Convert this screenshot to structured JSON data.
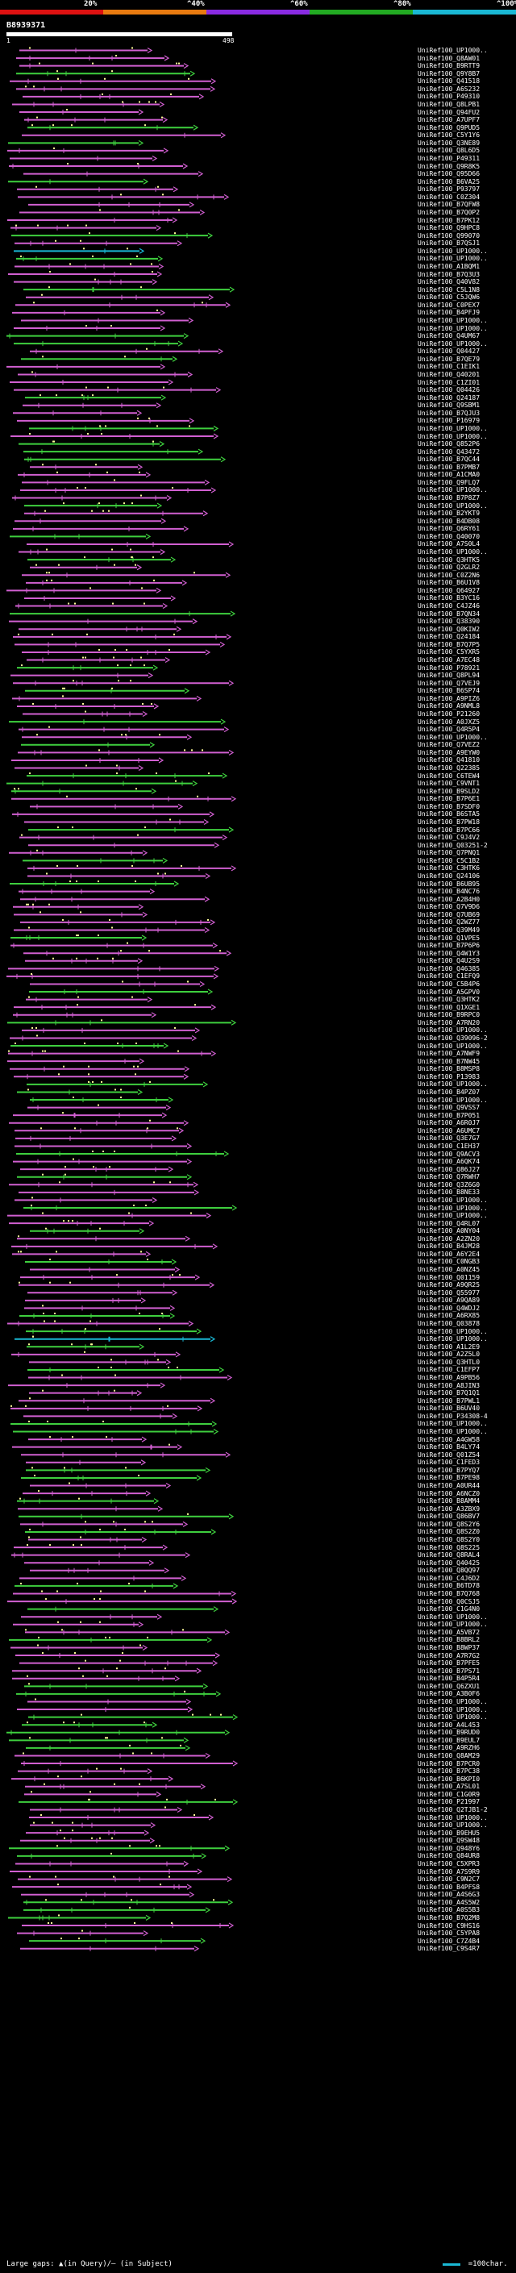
{
  "scale": {
    "labels": [
      "20%",
      "^40%",
      "^60%",
      "^80%",
      "^100%"
    ],
    "colors": [
      "#dd1111",
      "#e87a10",
      "#8a2be2",
      "#22aa22",
      "#1ab8d4"
    ]
  },
  "query": {
    "id": "B8939371",
    "start": "1",
    "end": "498"
  },
  "colors": {
    "hit_magenta": "#d15fd1",
    "hit_green": "#3ecf3e",
    "hit_cyan": "#1ab8d4",
    "gap_yellow": "#ffff99",
    "background": "#000000"
  },
  "hits": [
    "UniRef100_UP1000..",
    "UniRef100_Q8AW01",
    "UniRef100_B9RTT9",
    "UniRef100_Q9Y8B7",
    "UniRef100_Q41518",
    "UniRef100_A6S232",
    "UniRef100_P49310",
    "UniRef100_Q8LPB1",
    "UniRef100_Q94FU2",
    "UniRef100_A7UPF7",
    "UniRef100_Q9PUD5",
    "UniRef100_C5Y1Y6",
    "UniRef100_Q3NE89",
    "UniRef100_Q8L6D5",
    "UniRef100_P49311",
    "UniRef100_Q9R8K5",
    "UniRef100_Q95D66",
    "UniRef100_B6VA25",
    "UniRef100_P93797",
    "UniRef100_C0Z304",
    "UniRef100_B7QFW8",
    "UniRef100_B7Q0P2",
    "UniRef100_B7PK12",
    "UniRef100_Q9HPC8",
    "UniRef100_Q99070",
    "UniRef100_B7QSJ1",
    "UniRef100_UP1000..",
    "UniRef100_UP1000..",
    "UniRef100_A1BQM1",
    "UniRef100_B7Q3U3",
    "UniRef100_Q40V82",
    "UniRef100_C5L1N8",
    "UniRef100_C5JQW6",
    "UniRef100_C0PEX7",
    "UniRef100_B4PFJ9",
    "UniRef100_UP1000..",
    "UniRef100_UP1000..",
    "UniRef100_Q4UM67",
    "UniRef100_UP1000..",
    "UniRef100_Q04427",
    "UniRef100_B7QE79",
    "UniRef100_C1EIK1",
    "UniRef100_Q40201",
    "UniRef100_C1ZI01",
    "UniRef100_Q04426",
    "UniRef100_Q24187",
    "UniRef100_Q9SBM1",
    "UniRef100_B7QJU3",
    "UniRef100_P16979",
    "UniRef100_UP1000..",
    "UniRef100_UP1000..",
    "UniRef100_Q852P6",
    "UniRef100_Q43472",
    "UniRef100_B7QC44",
    "UniRef100_B7PMB7",
    "UniRef100_A1CMA0",
    "UniRef100_Q9FLQ7",
    "UniRef100_UP1000..",
    "UniRef100_B7P8Z7",
    "UniRef100_UP1000..",
    "UniRef100_B2YKT9",
    "UniRef100_B4DB08",
    "UniRef100_Q6RY61",
    "UniRef100_Q40070",
    "UniRef100_A7S0L4",
    "UniRef100_UP1000..",
    "UniRef100_Q3HTK5",
    "UniRef100_Q2GLR2",
    "UniRef100_C0Z2N6",
    "UniRef100_B6U1V8",
    "UniRef100_Q64927",
    "UniRef100_B3YC16",
    "UniRef100_C4JZ46",
    "UniRef100_B7QN34",
    "UniRef100_Q38390",
    "UniRef100_Q0KIW2",
    "UniRef100_Q24184",
    "UniRef100_B7Q7P5",
    "UniRef100_C5YXR5",
    "UniRef100_A7EC48",
    "UniRef100_P78921",
    "UniRef100_Q8PL94",
    "UniRef100_Q7VEJ9",
    "UniRef100_B6SP74",
    "UniRef100_A9PIZ6",
    "UniRef100_A9NML8",
    "UniRef100_P21260",
    "UniRef100_A0JXZ5",
    "UniRef100_Q4R5P4",
    "UniRef100_UP1000..",
    "UniRef100_Q7VEZ2",
    "UniRef100_A9EYW0",
    "UniRef100_Q41810",
    "UniRef100_Q22385",
    "UniRef100_C6TEW4",
    "UniRef100_C9VNT1",
    "UniRef100_B9SLD2",
    "UniRef100_B7P6E1",
    "UniRef100_B7SDF0",
    "UniRef100_B6STA5",
    "UniRef100_B7PW18",
    "UniRef100_B7PC66",
    "UniRef100_C9J4V2",
    "UniRef100_Q03251-2",
    "UniRef100_Q7PNQ1",
    "UniRef100_C5C1B2",
    "UniRef100_C3HTK6",
    "UniRef100_Q24106",
    "UniRef100_B6UB95",
    "UniRef100_B4NC76",
    "UniRef100_A2B4H0",
    "UniRef100_Q7V9D6",
    "UniRef100_Q7UB69",
    "UniRef100_Q2WZ77",
    "UniRef100_Q39M49",
    "UniRef100_Q1VPE5",
    "UniRef100_B7P6P6",
    "UniRef100_Q4W1Y3",
    "UniRef100_Q4U2S9",
    "UniRef100_Q46385",
    "UniRef100_C1EFQ9",
    "UniRef100_C5B4P6",
    "UniRef100_A5GPV0",
    "UniRef100_Q3HTK2",
    "UniRef100_Q1XGE1",
    "UniRef100_B9RPC0",
    "UniRef100_A7RN20",
    "UniRef100_UP1000..",
    "UniRef100_Q39096-2",
    "UniRef100_UP1000..",
    "UniRef100_A7NWF9",
    "UniRef100_B7NW45",
    "UniRef100_B8MSP8",
    "UniRef100_P13983",
    "UniRef100_UP1000..",
    "UniRef100_B4PZ07",
    "UniRef100_UP1000..",
    "UniRef100_Q9VSS7",
    "UniRef100_B7P051",
    "UniRef100_A6R0J7",
    "UniRef100_A6UMC7",
    "UniRef100_Q3E7G7",
    "UniRef100_C1EH37",
    "UniRef100_Q9ACV3",
    "UniRef100_A6QK74",
    "UniRef100_Q86J27",
    "UniRef100_Q7RWH7",
    "UniRef100_Q3Z6G0",
    "UniRef100_B8NE33",
    "UniRef100_UP1000..",
    "UniRef100_UP1000..",
    "UniRef100_UP1000..",
    "UniRef100_Q4RL07",
    "UniRef100_A0NY04",
    "UniRef100_A2ZN20",
    "UniRef100_B4JM28",
    "UniRef100_A6Y2E4",
    "UniRef100_C0NGB3",
    "UniRef100_A0NZ45",
    "UniRef100_Q01159",
    "UniRef100_A9QR25",
    "UniRef100_Q55977",
    "UniRef100_A9QA89",
    "UniRef100_Q4WDJ2",
    "UniRef100_A6RX85",
    "UniRef100_Q03878",
    "UniRef100_UP1000..",
    "UniRef100_UP1000..",
    "UniRef100_A1L2E9",
    "UniRef100_A2Z5L0",
    "UniRef100_Q3HTL0",
    "UniRef100_C1EFP7",
    "UniRef100_A9PB56",
    "UniRef100_A8JIN3",
    "UniRef100_B7Q1Q1",
    "UniRef100_B7PWL1",
    "UniRef100_B6UV40",
    "UniRef100_P34308-4",
    "UniRef100_UP1000..",
    "UniRef100_UP1000..",
    "UniRef100_A4GW58",
    "UniRef100_B4LY74",
    "UniRef100_Q01Z54",
    "UniRef100_C1FED3",
    "UniRef100_B7PYQ7",
    "UniRef100_B7PE98",
    "UniRef100_A0UR44",
    "UniRef100_A6NCZ0",
    "UniRef100_B8AMM4",
    "UniRef100_A3ZBX9",
    "UniRef100_Q86BV7",
    "UniRef100_Q8S2Y6",
    "UniRef100_Q8S2Z0",
    "UniRef100_Q8S2Y0",
    "UniRef100_Q8S225",
    "UniRef100_Q8RAL4",
    "UniRef100_Q40425",
    "UniRef100_Q8QQ97",
    "UniRef100_C4J6D2",
    "UniRef100_B6TD78",
    "UniRef100_B7Q768",
    "UniRef100_Q0CSJ5",
    "UniRef100_C1G4N0",
    "UniRef100_UP1000..",
    "UniRef100_UP1000..",
    "UniRef100_A5VB72",
    "UniRef100_B8BRL2",
    "UniRef100_B8WP37",
    "UniRef100_A7R7G2",
    "UniRef100_B7PFE5",
    "UniRef100_B7PS71",
    "UniRef100_B4P5R4",
    "UniRef100_Q6ZXU1",
    "UniRef100_A3B0F6",
    "UniRef100_UP1000..",
    "UniRef100_UP1000..",
    "UniRef100_UP1000..",
    "UniRef100_A4L453",
    "UniRef100_B9RUD0",
    "UniRef100_B9EUL7",
    "UniRef100_A9RZH6",
    "UniRef100_Q8AM29",
    "UniRef100_B7PCR0",
    "UniRef100_B7PC38",
    "UniRef100_B6KPI0",
    "UniRef100_A7SL01",
    "UniRef100_C1G0R9",
    "UniRef100_P21997",
    "UniRef100_Q2TJB1-2",
    "UniRef100_UP1000..",
    "UniRef100_UP1000..",
    "UniRef100_B9EHU5",
    "UniRef100_Q9SW48",
    "UniRef100_Q948Y6",
    "UniRef100_Q84UR8",
    "UniRef100_C5XPR3",
    "UniRef100_A7S9R9",
    "UniRef100_C9N2C7",
    "UniRef100_B4PFS8",
    "UniRef100_A4S6G3",
    "UniRef100_A4S5W2",
    "UniRef100_A0S5B3",
    "UniRef100_B7Q2M8",
    "UniRef100_C9HS16",
    "UniRef100_C5YPA8",
    "UniRef100_C7Z4B4",
    "UniRef100_C9S4R7"
  ],
  "legend": {
    "text": "Large gaps: ▲(in Query)/— (in Subject)",
    "ruler": "=100char."
  }
}
